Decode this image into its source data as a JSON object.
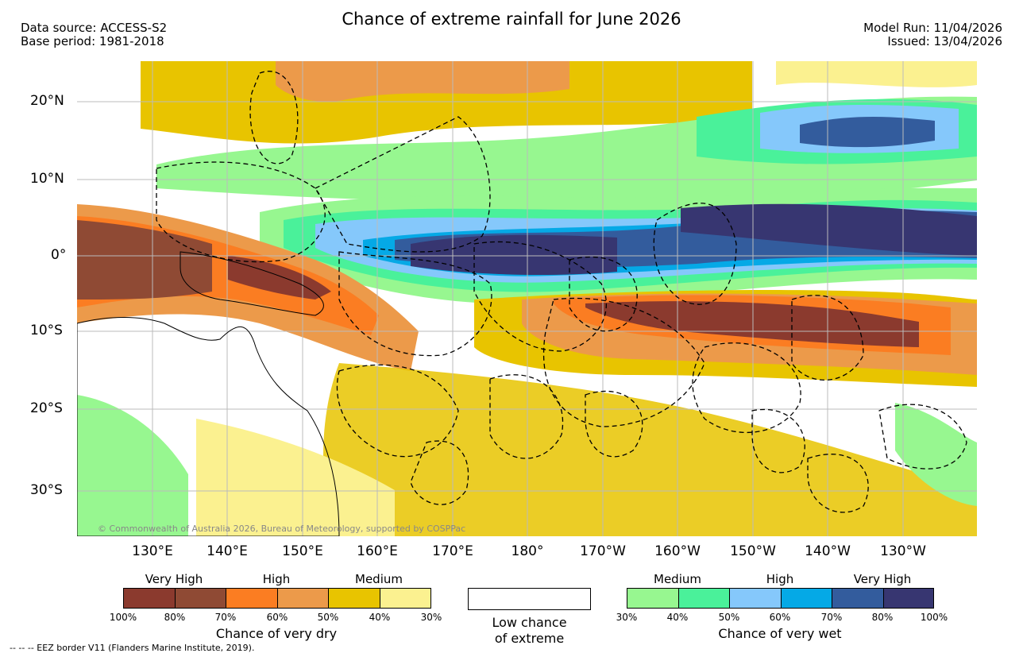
{
  "header": {
    "title": "Chance of extreme rainfall for June 2026",
    "data_source": "Data source: ACCESS-S2",
    "base_period": "Base period: 1981-2018",
    "model_run": "Model Run: 11/04/2026",
    "issued": "Issued: 13/04/2026"
  },
  "map": {
    "lat_labels": [
      "20°N",
      "10°N",
      "0°",
      "10°S",
      "20°S",
      "30°S"
    ],
    "lon_labels": [
      "130°E",
      "140°E",
      "150°E",
      "160°E",
      "170°E",
      "180°",
      "170°W",
      "160°W",
      "150°W",
      "140°W",
      "130°W"
    ],
    "copyright": "© Commonwealth of Australia 2026, Bureau of Meteorology, supported by COSPPac"
  },
  "legend": {
    "dry": {
      "caption": "Chance of very dry",
      "groups": [
        "Very High",
        "High",
        "Medium"
      ],
      "ticks": [
        "100%",
        "80%",
        "70%",
        "60%",
        "50%",
        "40%",
        "30%"
      ],
      "colors": [
        "#8b3a2e",
        "#8f4a34",
        "#fb7d22",
        "#ec9a4a",
        "#e8c400",
        "#fbf190"
      ]
    },
    "low": {
      "label_line1": "Low chance",
      "label_line2": "of extreme"
    },
    "wet": {
      "caption": "Chance of very wet",
      "groups": [
        "Medium",
        "High",
        "Very High"
      ],
      "ticks": [
        "30%",
        "40%",
        "50%",
        "60%",
        "70%",
        "80%",
        "100%"
      ],
      "colors": [
        "#97f790",
        "#4af19a",
        "#85c8fb",
        "#05a9e6",
        "#335c9d",
        "#373671"
      ]
    }
  },
  "footer": {
    "eez_note": "--  --  -- EEZ border V11 (Flanders Marine Institute, 2019)."
  }
}
